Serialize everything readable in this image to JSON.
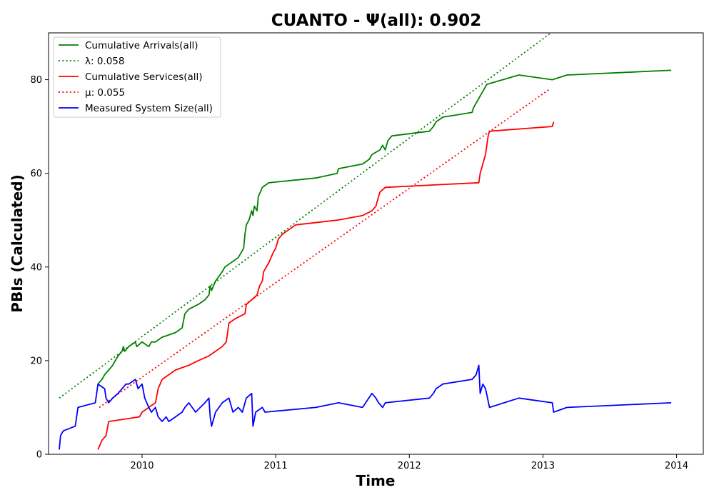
{
  "chart_data": {
    "type": "line",
    "title": "CUANTO -  Ψ(all): 0.902",
    "xlabel": "Time",
    "ylabel": "PBIs (Calculated)",
    "xlim": [
      2009.3,
      2014.2
    ],
    "ylim": [
      0,
      90
    ],
    "xticks": [
      2010,
      2011,
      2012,
      2013,
      2014
    ],
    "yticks": [
      0,
      20,
      40,
      60,
      80
    ],
    "grid": false,
    "legend_position": "top-left",
    "series": [
      {
        "name": "Cumulative Arrivals(all)",
        "style": "solid",
        "color": "#008000",
        "points": [
          [
            2009.67,
            15
          ],
          [
            2009.7,
            16
          ],
          [
            2009.72,
            17
          ],
          [
            2009.75,
            18
          ],
          [
            2009.78,
            19
          ],
          [
            2009.82,
            21
          ],
          [
            2009.85,
            22
          ],
          [
            2009.86,
            23
          ],
          [
            2009.87,
            22
          ],
          [
            2009.9,
            23
          ],
          [
            2009.95,
            24
          ],
          [
            2009.96,
            23
          ],
          [
            2010.0,
            24
          ],
          [
            2010.05,
            23
          ],
          [
            2010.07,
            24
          ],
          [
            2010.1,
            24
          ],
          [
            2010.15,
            25
          ],
          [
            2010.25,
            26
          ],
          [
            2010.3,
            27
          ],
          [
            2010.32,
            30
          ],
          [
            2010.35,
            31
          ],
          [
            2010.42,
            32
          ],
          [
            2010.47,
            33
          ],
          [
            2010.5,
            34
          ],
          [
            2010.51,
            36
          ],
          [
            2010.52,
            35
          ],
          [
            2010.55,
            37
          ],
          [
            2010.6,
            39
          ],
          [
            2010.62,
            40
          ],
          [
            2010.72,
            42
          ],
          [
            2010.76,
            44
          ],
          [
            2010.77,
            47
          ],
          [
            2010.78,
            49
          ],
          [
            2010.8,
            50
          ],
          [
            2010.82,
            52
          ],
          [
            2010.83,
            51
          ],
          [
            2010.84,
            53
          ],
          [
            2010.86,
            52
          ],
          [
            2010.87,
            55
          ],
          [
            2010.9,
            57
          ],
          [
            2010.95,
            58
          ],
          [
            2011.3,
            59
          ],
          [
            2011.46,
            60
          ],
          [
            2011.47,
            61
          ],
          [
            2011.65,
            62
          ],
          [
            2011.7,
            63
          ],
          [
            2011.72,
            64
          ],
          [
            2011.78,
            65
          ],
          [
            2011.8,
            66
          ],
          [
            2011.82,
            65
          ],
          [
            2011.84,
            67
          ],
          [
            2011.87,
            68
          ],
          [
            2012.15,
            69
          ],
          [
            2012.18,
            70
          ],
          [
            2012.2,
            71
          ],
          [
            2012.25,
            72
          ],
          [
            2012.47,
            73
          ],
          [
            2012.48,
            74
          ],
          [
            2012.5,
            75
          ],
          [
            2012.52,
            76
          ],
          [
            2012.54,
            77
          ],
          [
            2012.56,
            78
          ],
          [
            2012.58,
            79
          ],
          [
            2012.82,
            81
          ],
          [
            2013.07,
            80
          ],
          [
            2013.18,
            81
          ],
          [
            2013.96,
            82
          ]
        ]
      },
      {
        "name": "λ: 0.058",
        "style": "dotted",
        "color": "#008000",
        "points": [
          [
            2009.38,
            12
          ],
          [
            2013.06,
            90
          ]
        ]
      },
      {
        "name": "Cumulative Services(all)",
        "style": "solid",
        "color": "#ff0000",
        "points": [
          [
            2009.67,
            1
          ],
          [
            2009.7,
            3
          ],
          [
            2009.73,
            4
          ],
          [
            2009.75,
            7
          ],
          [
            2009.98,
            8
          ],
          [
            2010.0,
            9
          ],
          [
            2010.05,
            10
          ],
          [
            2010.1,
            11
          ],
          [
            2010.12,
            14
          ],
          [
            2010.15,
            16
          ],
          [
            2010.2,
            17
          ],
          [
            2010.25,
            18
          ],
          [
            2010.35,
            19
          ],
          [
            2010.42,
            20
          ],
          [
            2010.5,
            21
          ],
          [
            2010.55,
            22
          ],
          [
            2010.6,
            23
          ],
          [
            2010.63,
            24
          ],
          [
            2010.65,
            28
          ],
          [
            2010.7,
            29
          ],
          [
            2010.77,
            30
          ],
          [
            2010.78,
            32
          ],
          [
            2010.82,
            33
          ],
          [
            2010.86,
            34
          ],
          [
            2010.88,
            36
          ],
          [
            2010.9,
            37
          ],
          [
            2010.91,
            39
          ],
          [
            2010.95,
            41
          ],
          [
            2010.98,
            43
          ],
          [
            2011.0,
            44
          ],
          [
            2011.02,
            46
          ],
          [
            2011.05,
            47
          ],
          [
            2011.1,
            48
          ],
          [
            2011.15,
            49
          ],
          [
            2011.46,
            50
          ],
          [
            2011.65,
            51
          ],
          [
            2011.72,
            52
          ],
          [
            2011.75,
            53
          ],
          [
            2011.77,
            55
          ],
          [
            2011.78,
            56
          ],
          [
            2011.82,
            57
          ],
          [
            2012.52,
            58
          ],
          [
            2012.53,
            60
          ],
          [
            2012.55,
            62
          ],
          [
            2012.57,
            64
          ],
          [
            2012.58,
            66
          ],
          [
            2012.59,
            68
          ],
          [
            2012.6,
            69
          ],
          [
            2013.07,
            70
          ],
          [
            2013.08,
            71
          ]
        ]
      },
      {
        "name": "μ: 0.055",
        "style": "dotted",
        "color": "#ff0000",
        "points": [
          [
            2009.68,
            10
          ],
          [
            2013.05,
            78
          ]
        ]
      },
      {
        "name": "Measured System Size(all)",
        "style": "solid",
        "color": "#0000ff",
        "points": [
          [
            2009.38,
            1
          ],
          [
            2009.39,
            4
          ],
          [
            2009.41,
            5
          ],
          [
            2009.5,
            6
          ],
          [
            2009.52,
            10
          ],
          [
            2009.65,
            11
          ],
          [
            2009.67,
            15
          ],
          [
            2009.72,
            14
          ],
          [
            2009.73,
            12
          ],
          [
            2009.75,
            11
          ],
          [
            2009.78,
            12
          ],
          [
            2009.82,
            13
          ],
          [
            2009.85,
            14
          ],
          [
            2009.88,
            15
          ],
          [
            2009.9,
            15
          ],
          [
            2009.95,
            16
          ],
          [
            2009.97,
            14
          ],
          [
            2010.0,
            15
          ],
          [
            2010.02,
            12
          ],
          [
            2010.05,
            10
          ],
          [
            2010.07,
            9
          ],
          [
            2010.1,
            10
          ],
          [
            2010.12,
            8
          ],
          [
            2010.15,
            7
          ],
          [
            2010.18,
            8
          ],
          [
            2010.2,
            7
          ],
          [
            2010.25,
            8
          ],
          [
            2010.3,
            9
          ],
          [
            2010.32,
            10
          ],
          [
            2010.35,
            11
          ],
          [
            2010.4,
            9
          ],
          [
            2010.47,
            11
          ],
          [
            2010.5,
            12
          ],
          [
            2010.51,
            8
          ],
          [
            2010.52,
            6
          ],
          [
            2010.55,
            9
          ],
          [
            2010.6,
            11
          ],
          [
            2010.65,
            12
          ],
          [
            2010.68,
            9
          ],
          [
            2010.72,
            10
          ],
          [
            2010.75,
            9
          ],
          [
            2010.78,
            12
          ],
          [
            2010.82,
            13
          ],
          [
            2010.83,
            6
          ],
          [
            2010.85,
            9
          ],
          [
            2010.9,
            10
          ],
          [
            2010.92,
            9
          ],
          [
            2011.3,
            10
          ],
          [
            2011.47,
            11
          ],
          [
            2011.65,
            10
          ],
          [
            2011.72,
            13
          ],
          [
            2011.75,
            12
          ],
          [
            2011.77,
            11
          ],
          [
            2011.8,
            10
          ],
          [
            2011.82,
            11
          ],
          [
            2012.15,
            12
          ],
          [
            2012.18,
            13
          ],
          [
            2012.2,
            14
          ],
          [
            2012.25,
            15
          ],
          [
            2012.47,
            16
          ],
          [
            2012.5,
            17
          ],
          [
            2012.52,
            19
          ],
          [
            2012.53,
            13
          ],
          [
            2012.55,
            15
          ],
          [
            2012.57,
            14
          ],
          [
            2012.6,
            10
          ],
          [
            2012.82,
            12
          ],
          [
            2013.07,
            11
          ],
          [
            2013.08,
            9
          ],
          [
            2013.18,
            10
          ],
          [
            2013.96,
            11
          ]
        ]
      }
    ]
  }
}
